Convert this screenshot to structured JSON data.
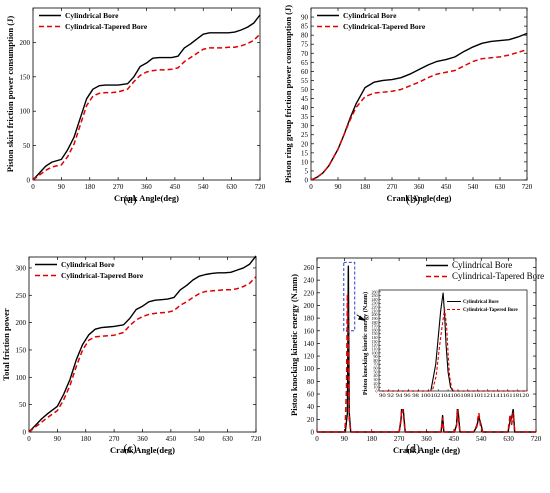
{
  "figure": {
    "panel_labels": [
      "(a)",
      "(b)",
      "(c)",
      "(d)"
    ]
  },
  "chart_data": [
    {
      "type": "line",
      "panel": "(a)",
      "xlabel": "Crank Angle(deg)",
      "ylabel": "Piston skirt friction power consumption (J)",
      "xlim": [
        0,
        720
      ],
      "ylim": [
        0,
        250
      ],
      "xticks": [
        0,
        90,
        180,
        270,
        360,
        450,
        540,
        630,
        720
      ],
      "yticks": [
        0,
        50,
        100,
        150,
        200
      ],
      "legend_position": "top-left",
      "series": [
        {
          "name": "Cylindrical Bore",
          "color": "#000000",
          "dash": "solid",
          "x": [
            0,
            20,
            40,
            60,
            90,
            110,
            130,
            150,
            170,
            190,
            210,
            230,
            250,
            270,
            300,
            320,
            340,
            360,
            380,
            400,
            420,
            440,
            460,
            480,
            500,
            520,
            540,
            560,
            580,
            600,
            620,
            640,
            660,
            680,
            700,
            720
          ],
          "values": [
            0,
            10,
            20,
            26,
            30,
            44,
            62,
            90,
            118,
            132,
            137,
            138,
            138,
            138,
            140,
            150,
            165,
            170,
            177,
            178,
            178,
            178,
            180,
            192,
            198,
            205,
            212,
            214,
            214,
            214,
            214,
            215,
            218,
            222,
            228,
            240
          ]
        },
        {
          "name": "Cylindrical-Tapered Bore",
          "color": "#e00000",
          "dash": "dashed",
          "x": [
            0,
            20,
            40,
            60,
            90,
            110,
            130,
            150,
            170,
            190,
            210,
            230,
            250,
            270,
            300,
            320,
            340,
            360,
            380,
            400,
            420,
            440,
            460,
            480,
            500,
            520,
            540,
            560,
            580,
            600,
            620,
            640,
            660,
            680,
            700,
            720
          ],
          "values": [
            0,
            7,
            14,
            19,
            22,
            34,
            52,
            80,
            108,
            122,
            126,
            127,
            127,
            128,
            132,
            143,
            152,
            157,
            159,
            160,
            160,
            161,
            163,
            172,
            178,
            184,
            190,
            192,
            192,
            192,
            193,
            193,
            195,
            198,
            203,
            212
          ]
        }
      ]
    },
    {
      "type": "line",
      "panel": "(b)",
      "xlabel": "Crank Angle(deg)",
      "ylabel": "Piston ring group friction power consumption (J)",
      "xlim": [
        0,
        720
      ],
      "ylim": [
        0,
        95
      ],
      "xticks": [
        0,
        90,
        180,
        270,
        360,
        450,
        540,
        630,
        720
      ],
      "yticks": [
        0,
        5,
        10,
        15,
        20,
        25,
        30,
        35,
        40,
        45,
        50,
        55,
        60,
        65,
        70,
        75,
        80,
        85,
        90
      ],
      "legend_position": "top-left",
      "series": [
        {
          "name": "Cylindrical Bore",
          "color": "#000000",
          "dash": "solid",
          "x": [
            0,
            20,
            40,
            60,
            80,
            90,
            110,
            130,
            150,
            180,
            210,
            240,
            270,
            300,
            330,
            360,
            390,
            420,
            450,
            480,
            510,
            540,
            570,
            600,
            630,
            660,
            690,
            720
          ],
          "values": [
            0,
            1.5,
            4,
            8,
            14,
            17,
            25,
            34,
            42,
            51,
            54,
            55,
            55.5,
            56.5,
            58.5,
            61,
            63.5,
            65.5,
            66.5,
            68,
            71,
            73.5,
            75.5,
            76.5,
            77,
            77.5,
            79,
            81
          ]
        },
        {
          "name": "Cylindrical-Tapered Bore",
          "color": "#e00000",
          "dash": "dashed",
          "x": [
            0,
            20,
            40,
            60,
            80,
            90,
            110,
            130,
            150,
            180,
            210,
            240,
            270,
            300,
            330,
            360,
            390,
            420,
            450,
            480,
            510,
            540,
            570,
            600,
            630,
            660,
            690,
            720
          ],
          "values": [
            0,
            1.5,
            4,
            8,
            14,
            17,
            25,
            33,
            40,
            46,
            48,
            48.5,
            49,
            50,
            52,
            54,
            56.5,
            58.5,
            59.5,
            60.5,
            63,
            65.5,
            67,
            67.5,
            68,
            69,
            70.5,
            72
          ]
        }
      ]
    },
    {
      "type": "line",
      "panel": "(c)",
      "xlabel": "Crank Angle(deg)",
      "ylabel": "Total friction power",
      "xlim": [
        0,
        720
      ],
      "ylim": [
        0,
        320
      ],
      "xticks": [
        0,
        90,
        180,
        270,
        360,
        450,
        540,
        630,
        720
      ],
      "yticks": [
        0,
        50,
        100,
        150,
        200,
        250,
        300
      ],
      "legend_position": "top-left",
      "series": [
        {
          "name": "Cylindrical Bore",
          "color": "#000000",
          "dash": "solid",
          "x": [
            0,
            20,
            40,
            60,
            90,
            110,
            130,
            150,
            170,
            190,
            210,
            230,
            250,
            270,
            300,
            320,
            340,
            360,
            380,
            400,
            420,
            440,
            460,
            480,
            500,
            520,
            540,
            560,
            580,
            600,
            620,
            640,
            660,
            680,
            700,
            720
          ],
          "values": [
            0,
            12,
            24,
            34,
            47,
            69,
            96,
            132,
            160,
            178,
            188,
            191,
            192,
            193,
            196,
            208,
            224,
            230,
            238,
            241,
            242,
            243,
            246,
            260,
            268,
            278,
            285,
            288,
            290,
            291,
            291,
            292,
            296,
            300,
            307,
            322
          ]
        },
        {
          "name": "Cylindrical-Tapered Bore",
          "color": "#e00000",
          "dash": "dashed",
          "x": [
            0,
            20,
            40,
            60,
            90,
            110,
            130,
            150,
            170,
            190,
            210,
            230,
            250,
            270,
            300,
            320,
            340,
            360,
            380,
            400,
            420,
            440,
            460,
            480,
            500,
            520,
            540,
            560,
            580,
            600,
            620,
            640,
            660,
            680,
            700,
            720
          ],
          "values": [
            0,
            9,
            18,
            27,
            39,
            59,
            85,
            120,
            150,
            168,
            174,
            175,
            176,
            177,
            182,
            195,
            205,
            211,
            215,
            217,
            218,
            219,
            222,
            232,
            238,
            246,
            253,
            257,
            258,
            259,
            260,
            260,
            262,
            266,
            272,
            284
          ]
        }
      ]
    },
    {
      "type": "line",
      "panel": "(d)",
      "xlabel": "Crank Angle (deg)",
      "ylabel": "Piston knocking kinetic energy (N.mm)",
      "xlim": [
        0,
        720
      ],
      "ylim": [
        0,
        275
      ],
      "xticks": [
        0,
        90,
        180,
        270,
        360,
        450,
        540,
        630,
        720
      ],
      "yticks": [
        0,
        20,
        40,
        60,
        80,
        100,
        120,
        140,
        160,
        180,
        200,
        220,
        240,
        260
      ],
      "legend_position": "top-right",
      "series": [
        {
          "name": "Cylindrical Bore",
          "color": "#000000",
          "dash": "solid",
          "x": [
            0,
            86,
            93,
            100,
            103,
            106,
            111,
            117,
            270,
            276,
            280,
            285,
            290,
            408,
            413,
            417,
            440,
            452,
            459,
            462,
            465,
            470,
            515,
            525,
            532,
            538,
            545,
            628,
            635,
            640,
            645,
            650,
            720
          ],
          "values": [
            0,
            0,
            0,
            30,
            262,
            30,
            0,
            0,
            0,
            18,
            52,
            28,
            0,
            0,
            26,
            0,
            0,
            0,
            12,
            40,
            28,
            0,
            0,
            8,
            24,
            14,
            0,
            0,
            18,
            22,
            36,
            0,
            0
          ]
        },
        {
          "name": "Cylindrical-Tapered Bore",
          "color": "#e00000",
          "dash": "dashed",
          "x": [
            0,
            86,
            92,
            97,
            100,
            103,
            106,
            111,
            117,
            270,
            276,
            280,
            285,
            290,
            408,
            413,
            417,
            440,
            452,
            459,
            462,
            465,
            470,
            515,
            525,
            532,
            538,
            545,
            628,
            635,
            640,
            645,
            650,
            720
          ],
          "values": [
            0,
            0,
            0,
            70,
            218,
            130,
            20,
            0,
            0,
            0,
            20,
            44,
            22,
            0,
            0,
            22,
            0,
            0,
            0,
            10,
            34,
            20,
            0,
            0,
            10,
            30,
            8,
            0,
            0,
            28,
            12,
            30,
            0,
            0
          ]
        }
      ],
      "inset": {
        "ylabel": "Piston knocking kinetic energy (N.mm)",
        "xlim": [
          90,
          120
        ],
        "ylim": [
          0,
          265
        ],
        "xticks": [
          90,
          92,
          94,
          96,
          98,
          100,
          102,
          104,
          106,
          108,
          110,
          112,
          114,
          116,
          118,
          120
        ],
        "xtick_labels": "90 92 94 96 98 100102104106108110112114116118120",
        "yticks": [
          0,
          10,
          20,
          30,
          40,
          50,
          60,
          70,
          80,
          90,
          100,
          110,
          120,
          130,
          140,
          150,
          160,
          170,
          180,
          190,
          200,
          210,
          220,
          230,
          240,
          250,
          260
        ],
        "series": [
          {
            "name": "Cylindrical Bore",
            "x": [
              90,
              100.5,
              101.5,
              102,
              102.5,
              103,
              103.3,
              103.6,
              104,
              104.5,
              105,
              120
            ],
            "values": [
              0,
              0,
              70,
              140,
              210,
              258,
              200,
              120,
              50,
              10,
              0,
              0
            ]
          },
          {
            "name": "Cylindrical-Tapered Bore",
            "x": [
              90,
              100.8,
              101.6,
              102.2,
              102.8,
              103.3,
              103.7,
              104,
              104.3,
              104.7,
              105.2,
              120
            ],
            "values": [
              0,
              0,
              40,
              110,
              170,
              215,
              170,
              100,
              40,
              8,
              0,
              0
            ]
          }
        ]
      }
    }
  ]
}
